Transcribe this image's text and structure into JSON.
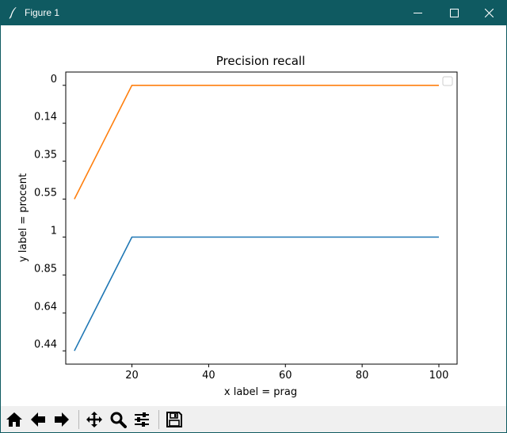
{
  "window": {
    "title": "Figure 1"
  },
  "toolbar": {
    "buttons": [
      {
        "name": "home-button",
        "icon": "home-icon"
      },
      {
        "name": "back-button",
        "icon": "arrow-left-icon"
      },
      {
        "name": "forward-button",
        "icon": "arrow-right-icon"
      },
      {
        "name": "pan-button",
        "icon": "move-icon"
      },
      {
        "name": "zoom-button",
        "icon": "magnifier-icon"
      },
      {
        "name": "configure-subplots-button",
        "icon": "sliders-icon"
      },
      {
        "name": "save-button",
        "icon": "floppy-disk-icon"
      }
    ]
  },
  "chart_data": {
    "type": "line",
    "title": "Precision recall",
    "xlabel": "x label = prag",
    "ylabel": "y label = procent",
    "x_ticks": [
      20,
      40,
      60,
      80,
      100
    ],
    "xlim": [
      2.75,
      104.75
    ],
    "y_categories": [
      "0.44",
      "0.64",
      "0.85",
      "1",
      "0.55",
      "0.35",
      "0.14",
      "0"
    ],
    "ylim": [
      -0.35,
      7.35
    ],
    "legend": {
      "placement": "upper-right",
      "entries": []
    },
    "grid": false,
    "series": [
      {
        "color": "#1f77b4",
        "x": [
          5,
          20,
          40,
          60,
          80,
          100
        ],
        "y": [
          "0.44",
          "1",
          "1",
          "1",
          "1",
          "1"
        ]
      },
      {
        "color": "#ff7f0e",
        "x": [
          5,
          20,
          40,
          60,
          80,
          100
        ],
        "y": [
          "0.55",
          "0",
          "0",
          "0",
          "0",
          "0"
        ]
      }
    ]
  }
}
